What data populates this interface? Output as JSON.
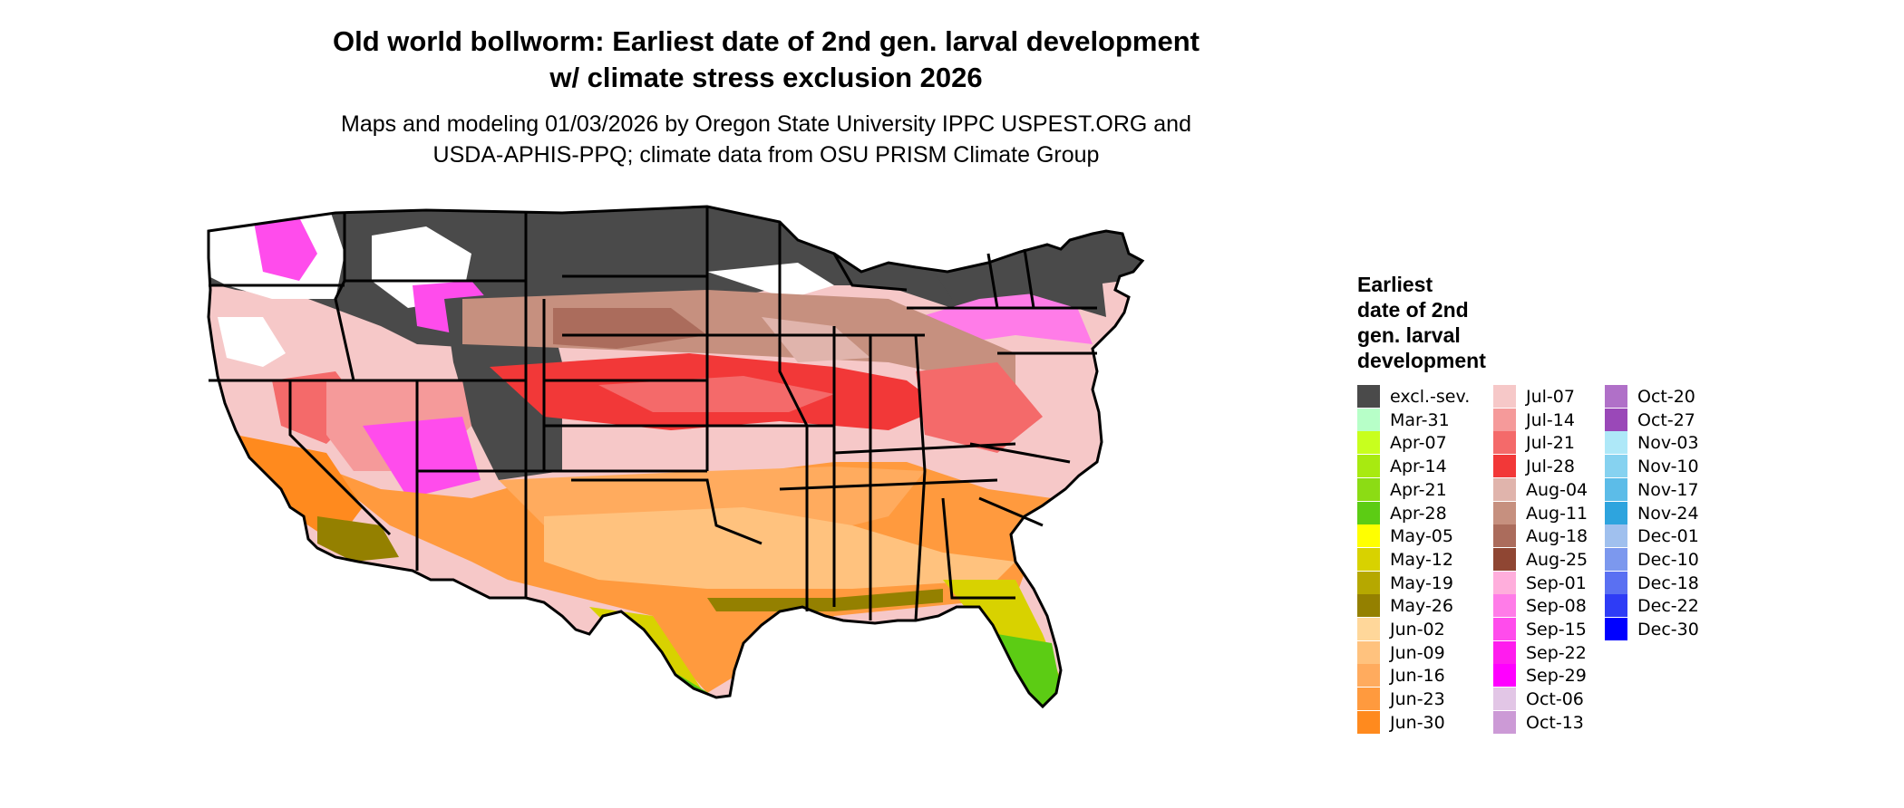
{
  "title": {
    "line1": "Old world bollworm: Earliest date of 2nd gen. larval development",
    "line2": "w/ climate stress exclusion 2026"
  },
  "subtitle": {
    "line1": "Maps and modeling 01/03/2026 by Oregon State University IPPC USPEST.ORG and",
    "line2": "USDA-APHIS-PPQ; climate data from OSU PRISM Climate Group"
  },
  "legend": {
    "title_lines": [
      "Earliest",
      "date of 2nd",
      "gen. larval",
      "development"
    ],
    "columns": [
      [
        {
          "label": "excl.-sev.",
          "color": "#4a4a4a"
        },
        {
          "label": "Mar-31",
          "color": "#b7ffc8"
        },
        {
          "label": "Apr-07",
          "color": "#c8ff1e"
        },
        {
          "label": "Apr-14",
          "color": "#a8ea10"
        },
        {
          "label": "Apr-21",
          "color": "#8cdc14"
        },
        {
          "label": "Apr-28",
          "color": "#5ccc14"
        },
        {
          "label": "May-05",
          "color": "#ffff00"
        },
        {
          "label": "May-12",
          "color": "#d8d200"
        },
        {
          "label": "May-19",
          "color": "#b6a800"
        },
        {
          "label": "May-26",
          "color": "#948000"
        },
        {
          "label": "Jun-02",
          "color": "#ffd79a"
        },
        {
          "label": "Jun-09",
          "color": "#ffc27e"
        },
        {
          "label": "Jun-16",
          "color": "#ffab5e"
        },
        {
          "label": "Jun-23",
          "color": "#ff9a3e"
        },
        {
          "label": "Jun-30",
          "color": "#ff8a1e"
        }
      ],
      [
        {
          "label": "Jul-07",
          "color": "#f6c8c8"
        },
        {
          "label": "Jul-14",
          "color": "#f59a9a"
        },
        {
          "label": "Jul-21",
          "color": "#f46a6a"
        },
        {
          "label": "Jul-28",
          "color": "#f23838"
        },
        {
          "label": "Aug-04",
          "color": "#e0b4ac"
        },
        {
          "label": "Aug-11",
          "color": "#c6907f"
        },
        {
          "label": "Aug-18",
          "color": "#ab6c5c"
        },
        {
          "label": "Aug-25",
          "color": "#8f4633"
        },
        {
          "label": "Sep-01",
          "color": "#ffaedc"
        },
        {
          "label": "Sep-08",
          "color": "#ff7ce8"
        },
        {
          "label": "Sep-15",
          "color": "#ff4cec"
        },
        {
          "label": "Sep-22",
          "color": "#ff1cee"
        },
        {
          "label": "Sep-29",
          "color": "#ff00ff"
        },
        {
          "label": "Oct-06",
          "color": "#e2c6e6"
        },
        {
          "label": "Oct-13",
          "color": "#cc9ad6"
        }
      ],
      [
        {
          "label": "Oct-20",
          "color": "#b070c8"
        },
        {
          "label": "Oct-27",
          "color": "#9a48b8"
        },
        {
          "label": "Nov-03",
          "color": "#aee8f8"
        },
        {
          "label": "Nov-10",
          "color": "#86d2f0"
        },
        {
          "label": "Nov-17",
          "color": "#5cbce8"
        },
        {
          "label": "Nov-24",
          "color": "#2ea4de"
        },
        {
          "label": "Dec-01",
          "color": "#a0c0ee"
        },
        {
          "label": "Dec-10",
          "color": "#7c98ee"
        },
        {
          "label": "Dec-18",
          "color": "#5a70f2"
        },
        {
          "label": "Dec-22",
          "color": "#2e3cf6"
        },
        {
          "label": "Dec-30",
          "color": "#0000ff"
        }
      ]
    ]
  }
}
